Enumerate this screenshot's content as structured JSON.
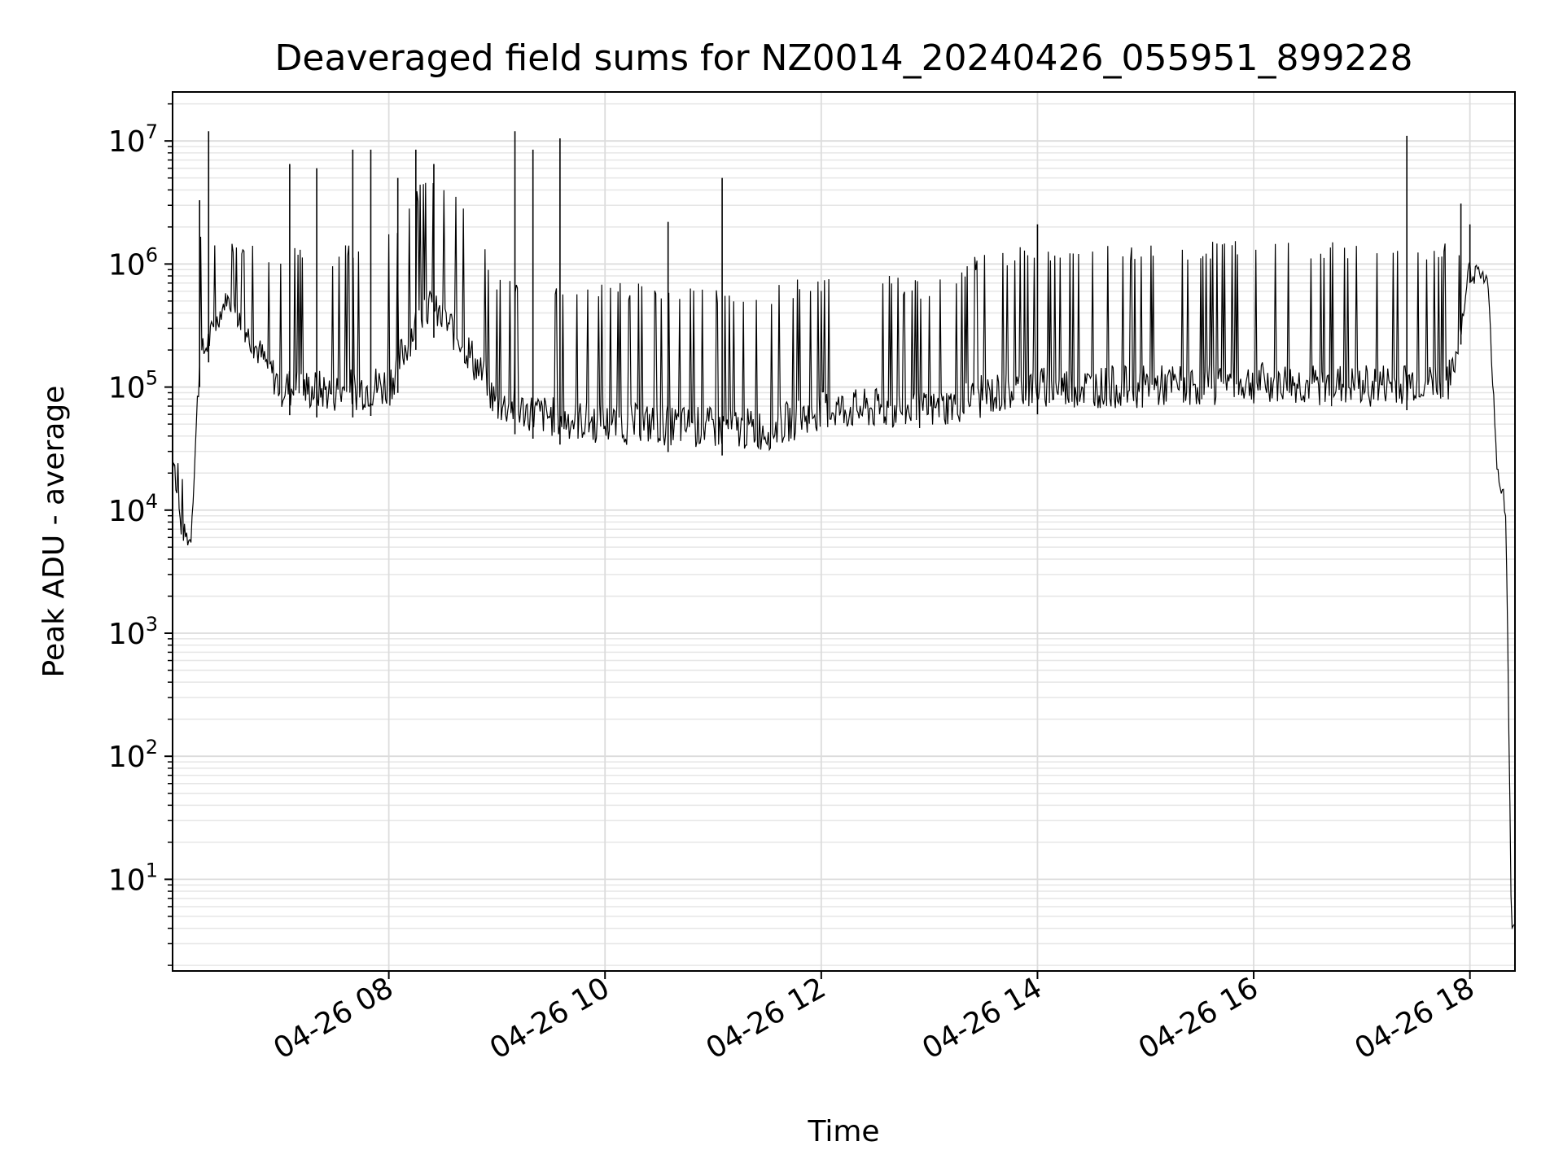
{
  "chart_data": {
    "type": "line",
    "title": "Deaveraged field sums for NZ0014_20240426_055951_899228",
    "xlabel": "Time",
    "ylabel": "Peak ADU - average",
    "yscale": "log",
    "ylim": [
      1.8,
      25000000
    ],
    "xlim": [
      "2024-04-26 06:00",
      "2024-04-26 18:25"
    ],
    "x_ticks": [
      {
        "value": "2024-04-26 08:00",
        "label": "04-26 08"
      },
      {
        "value": "2024-04-26 10:00",
        "label": "04-26 10"
      },
      {
        "value": "2024-04-26 12:00",
        "label": "04-26 12"
      },
      {
        "value": "2024-04-26 14:00",
        "label": "04-26 14"
      },
      {
        "value": "2024-04-26 16:00",
        "label": "04-26 16"
      },
      {
        "value": "2024-04-26 18:00",
        "label": "04-26 18"
      }
    ],
    "y_ticks": [
      {
        "value": 10,
        "base": "10",
        "exp": "1"
      },
      {
        "value": 100,
        "base": "10",
        "exp": "2"
      },
      {
        "value": 1000,
        "base": "10",
        "exp": "3"
      },
      {
        "value": 10000,
        "base": "10",
        "exp": "4"
      },
      {
        "value": 100000,
        "base": "10",
        "exp": "5"
      },
      {
        "value": 1000000,
        "base": "10",
        "exp": "6"
      },
      {
        "value": 10000000,
        "base": "10",
        "exp": "7"
      }
    ],
    "grid": true,
    "line_color": "#000000",
    "series": [
      {
        "envelope": [
          {
            "x": "2024-04-26 06:00",
            "low": 20000,
            "high": 35000
          },
          {
            "x": "2024-04-26 06:05",
            "low": 5000,
            "high": 25000
          },
          {
            "x": "2024-04-26 06:10",
            "low": 4000,
            "high": 22000
          },
          {
            "x": "2024-04-26 06:15",
            "low": 100000,
            "high": 1700000
          },
          {
            "x": "2024-04-26 06:30",
            "low": 400000,
            "high": 1500000
          },
          {
            "x": "2024-04-26 06:45",
            "low": 150000,
            "high": 1500000
          },
          {
            "x": "2024-04-26 07:00",
            "low": 60000,
            "high": 1400000
          },
          {
            "x": "2024-04-26 07:30",
            "low": 55000,
            "high": 1300000
          },
          {
            "x": "2024-04-26 08:00",
            "low": 60000,
            "high": 2000000
          },
          {
            "x": "2024-04-26 08:20",
            "low": 300000,
            "high": 5000000
          },
          {
            "x": "2024-04-26 08:40",
            "low": 150000,
            "high": 4000000
          },
          {
            "x": "2024-04-26 09:00",
            "low": 45000,
            "high": 800000
          },
          {
            "x": "2024-04-26 09:30",
            "low": 35000,
            "high": 750000
          },
          {
            "x": "2024-04-26 10:00",
            "low": 30000,
            "high": 700000
          },
          {
            "x": "2024-04-26 10:30",
            "low": 30000,
            "high": 700000
          },
          {
            "x": "2024-04-26 11:00",
            "low": 28000,
            "high": 650000
          },
          {
            "x": "2024-04-26 11:30",
            "low": 27000,
            "high": 650000
          },
          {
            "x": "2024-04-26 12:00",
            "low": 40000,
            "high": 850000
          },
          {
            "x": "2024-04-26 12:30",
            "low": 40000,
            "high": 900000
          },
          {
            "x": "2024-04-26 13:00",
            "low": 40000,
            "high": 700000
          },
          {
            "x": "2024-04-26 13:30",
            "low": 50000,
            "high": 1300000
          },
          {
            "x": "2024-04-26 14:00",
            "low": 60000,
            "high": 1400000
          },
          {
            "x": "2024-04-26 15:00",
            "low": 60000,
            "high": 1500000
          },
          {
            "x": "2024-04-26 16:00",
            "low": 65000,
            "high": 1550000
          },
          {
            "x": "2024-04-26 17:00",
            "low": 60000,
            "high": 1550000
          },
          {
            "x": "2024-04-26 17:50",
            "low": 70000,
            "high": 1500000
          },
          {
            "x": "2024-04-26 18:00",
            "low": 700000,
            "high": 1200000
          },
          {
            "x": "2024-04-26 18:10",
            "low": 600000,
            "high": 800000
          },
          {
            "x": "2024-04-26 18:15",
            "low": 20000,
            "high": 25000
          },
          {
            "x": "2024-04-26 18:20",
            "low": 8000,
            "high": 15000
          },
          {
            "x": "2024-04-26 18:23",
            "low": 4,
            "high": 5
          }
        ],
        "spikes": [
          {
            "x": "2024-04-26 06:15",
            "y": 3300000
          },
          {
            "x": "2024-04-26 06:20",
            "y": 12000000
          },
          {
            "x": "2024-04-26 07:05",
            "y": 6500000
          },
          {
            "x": "2024-04-26 07:20",
            "y": 6000000
          },
          {
            "x": "2024-04-26 07:40",
            "y": 8500000
          },
          {
            "x": "2024-04-26 07:50",
            "y": 8500000
          },
          {
            "x": "2024-04-26 08:05",
            "y": 5000000
          },
          {
            "x": "2024-04-26 08:15",
            "y": 8500000
          },
          {
            "x": "2024-04-26 08:25",
            "y": 6500000
          },
          {
            "x": "2024-04-26 09:10",
            "y": 12000000
          },
          {
            "x": "2024-04-26 09:20",
            "y": 8500000
          },
          {
            "x": "2024-04-26 09:35",
            "y": 10500000
          },
          {
            "x": "2024-04-26 10:35",
            "y": 2200000
          },
          {
            "x": "2024-04-26 11:05",
            "y": 5000000
          },
          {
            "x": "2024-04-26 14:00",
            "y": 2100000
          },
          {
            "x": "2024-04-26 17:25",
            "y": 11000000
          },
          {
            "x": "2024-04-26 17:55",
            "y": 3100000
          },
          {
            "x": "2024-04-26 18:00",
            "y": 2100000
          }
        ]
      }
    ]
  }
}
